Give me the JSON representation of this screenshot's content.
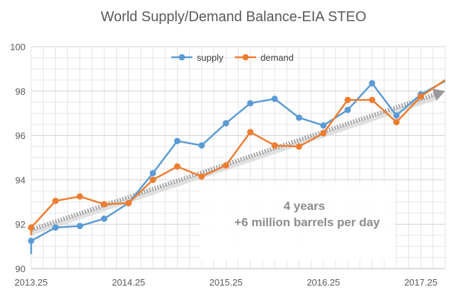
{
  "chart_data": {
    "type": "line",
    "title": "World Supply/Demand Balance-EIA STEO",
    "xlabel": "",
    "ylabel": "",
    "ylim": [
      90,
      100
    ],
    "yticks": [
      "90",
      "92",
      "94",
      "96",
      "98",
      "100"
    ],
    "xlim": [
      2013.25,
      2017.5
    ],
    "xtick_labels": [
      {
        "label": "2013.25",
        "x": 2013.25
      },
      {
        "label": "2014.25",
        "x": 2014.25
      },
      {
        "label": "2015.25",
        "x": 2015.25
      },
      {
        "label": "2016.25",
        "x": 2016.25
      },
      {
        "label": "2017.25",
        "x": 2017.25
      }
    ],
    "grid": true,
    "legend_position": "top-center",
    "x": [
      2013.25,
      2013.5,
      2013.75,
      2014.0,
      2014.25,
      2014.5,
      2014.75,
      2015.0,
      2015.25,
      2015.5,
      2015.75,
      2016.0,
      2016.25,
      2016.5,
      2016.75,
      2017.0,
      2017.25
    ],
    "series": [
      {
        "name": "supply",
        "color": "#5b9bd5",
        "values": [
          91.25,
          91.85,
          91.92,
          92.25,
          92.95,
          94.3,
          95.75,
          95.55,
          96.55,
          97.45,
          97.65,
          96.8,
          96.45,
          97.15,
          98.35,
          96.9,
          97.85
        ],
        "line_start": 90.65,
        "line_end": 98.45
      },
      {
        "name": "demand",
        "color": "#ed7d31",
        "values": [
          91.85,
          93.05,
          93.25,
          92.9,
          92.95,
          94.0,
          94.6,
          94.15,
          94.65,
          96.15,
          95.55,
          95.5,
          96.1,
          97.6,
          97.6,
          96.6,
          97.75
        ],
        "line_start": 91.5,
        "line_end": 98.5
      }
    ],
    "trend": {
      "from": [
        2013.25,
        91.75
      ],
      "to": [
        2017.5,
        98.0
      ],
      "color": "#a6a6a6",
      "style": "dotted"
    },
    "annotation": {
      "lines": [
        "4 years",
        "+6 million barrels per day"
      ]
    }
  }
}
